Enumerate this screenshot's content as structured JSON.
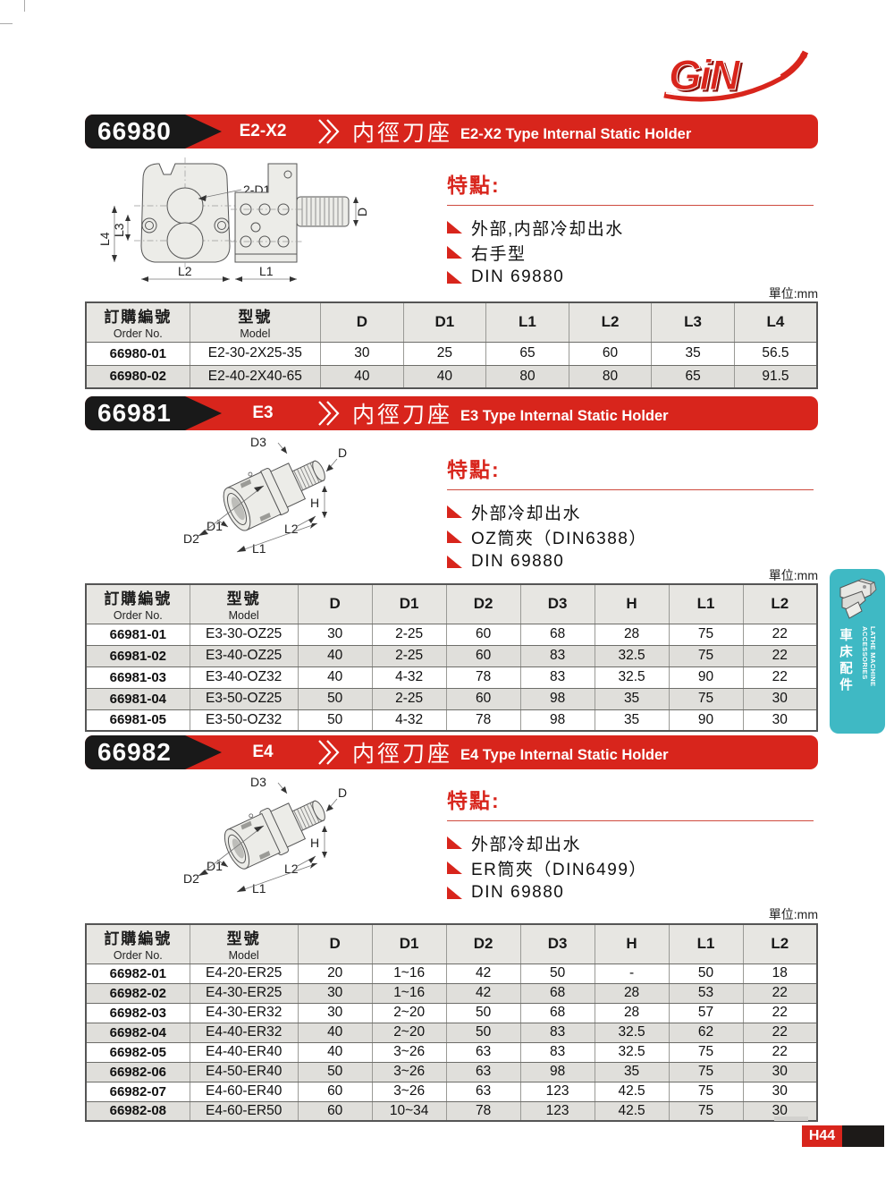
{
  "page": {
    "unit_label": "單位:mm",
    "features_title": "特點:",
    "page_number": "H44",
    "logo_text": "GiN",
    "logo_mark": "®",
    "colors": {
      "red": "#d8251c",
      "black": "#191919",
      "teal": "#3fb9c4"
    }
  },
  "sidebar": {
    "en": "LATHE MACHINE ACCESSORIES",
    "zh": "車床配件"
  },
  "sections": [
    {
      "code": "66980",
      "model_type": "E2-X2",
      "title_zh": "内徑刀座",
      "title_en": "E2-X2 Type Internal Static Holder",
      "features": [
        "外部,内部冷却出水",
        "右手型",
        "DIN 69880"
      ],
      "table": {
        "col1_zh": "訂購編號",
        "col1_en": "Order No.",
        "col2_zh": "型號",
        "col2_en": "Model",
        "dims": [
          "D",
          "D1",
          "L1",
          "L2",
          "L3",
          "L4"
        ],
        "rows": [
          [
            "66980-01",
            "E2-30-2X25-35",
            "30",
            "25",
            "65",
            "60",
            "35",
            "56.5"
          ],
          [
            "66980-02",
            "E2-40-2X40-65",
            "40",
            "40",
            "80",
            "80",
            "65",
            "91.5"
          ]
        ]
      }
    },
    {
      "code": "66981",
      "model_type": "E3",
      "title_zh": "内徑刀座",
      "title_en": "E3 Type Internal Static Holder",
      "features": [
        "外部冷却出水",
        "OZ筒夾（DIN6388）",
        "DIN 69880"
      ],
      "table": {
        "col1_zh": "訂購編號",
        "col1_en": "Order No.",
        "col2_zh": "型號",
        "col2_en": "Model",
        "dims": [
          "D",
          "D1",
          "D2",
          "D3",
          "H",
          "L1",
          "L2"
        ],
        "rows": [
          [
            "66981-01",
            "E3-30-OZ25",
            "30",
            "2-25",
            "60",
            "68",
            "28",
            "75",
            "22"
          ],
          [
            "66981-02",
            "E3-40-OZ25",
            "40",
            "2-25",
            "60",
            "83",
            "32.5",
            "75",
            "22"
          ],
          [
            "66981-03",
            "E3-40-OZ32",
            "40",
            "4-32",
            "78",
            "83",
            "32.5",
            "90",
            "22"
          ],
          [
            "66981-04",
            "E3-50-OZ25",
            "50",
            "2-25",
            "60",
            "98",
            "35",
            "75",
            "30"
          ],
          [
            "66981-05",
            "E3-50-OZ32",
            "50",
            "4-32",
            "78",
            "98",
            "35",
            "90",
            "30"
          ]
        ]
      }
    },
    {
      "code": "66982",
      "model_type": "E4",
      "title_zh": "内徑刀座",
      "title_en": "E4 Type Internal Static Holder",
      "features": [
        "外部冷却出水",
        "ER筒夾（DIN6499）",
        "DIN 69880"
      ],
      "table": {
        "col1_zh": "訂購編號",
        "col1_en": "Order No.",
        "col2_zh": "型號",
        "col2_en": "Model",
        "dims": [
          "D",
          "D1",
          "D2",
          "D3",
          "H",
          "L1",
          "L2"
        ],
        "rows": [
          [
            "66982-01",
            "E4-20-ER25",
            "20",
            "1~16",
            "42",
            "50",
            "-",
            "50",
            "18"
          ],
          [
            "66982-02",
            "E4-30-ER25",
            "30",
            "1~16",
            "42",
            "68",
            "28",
            "53",
            "22"
          ],
          [
            "66982-03",
            "E4-30-ER32",
            "30",
            "2~20",
            "50",
            "68",
            "28",
            "57",
            "22"
          ],
          [
            "66982-04",
            "E4-40-ER32",
            "40",
            "2~20",
            "50",
            "83",
            "32.5",
            "62",
            "22"
          ],
          [
            "66982-05",
            "E4-40-ER40",
            "40",
            "3~26",
            "63",
            "83",
            "32.5",
            "75",
            "22"
          ],
          [
            "66982-06",
            "E4-50-ER40",
            "50",
            "3~26",
            "63",
            "98",
            "35",
            "75",
            "30"
          ],
          [
            "66982-07",
            "E4-60-ER40",
            "60",
            "3~26",
            "63",
            "123",
            "42.5",
            "75",
            "30"
          ],
          [
            "66982-08",
            "E4-60-ER50",
            "60",
            "10~34",
            "78",
            "123",
            "42.5",
            "75",
            "30"
          ]
        ]
      }
    }
  ],
  "drawings": {
    "e2x2": {
      "labels": {
        "hole": "2-D1",
        "l4": "L4",
        "l3": "L3",
        "l2": "L2",
        "l1": "L1",
        "d": "D"
      }
    },
    "e3": {
      "labels": {
        "d3": "D3",
        "d": "D",
        "h": "H",
        "d1": "D1",
        "d2": "D2",
        "l2": "L2",
        "l1": "L1"
      }
    },
    "e4": {
      "labels": {
        "d3": "D3",
        "d": "D",
        "h": "H",
        "d1": "D1",
        "d2": "D2",
        "l2": "L2",
        "l1": "L1"
      }
    }
  }
}
